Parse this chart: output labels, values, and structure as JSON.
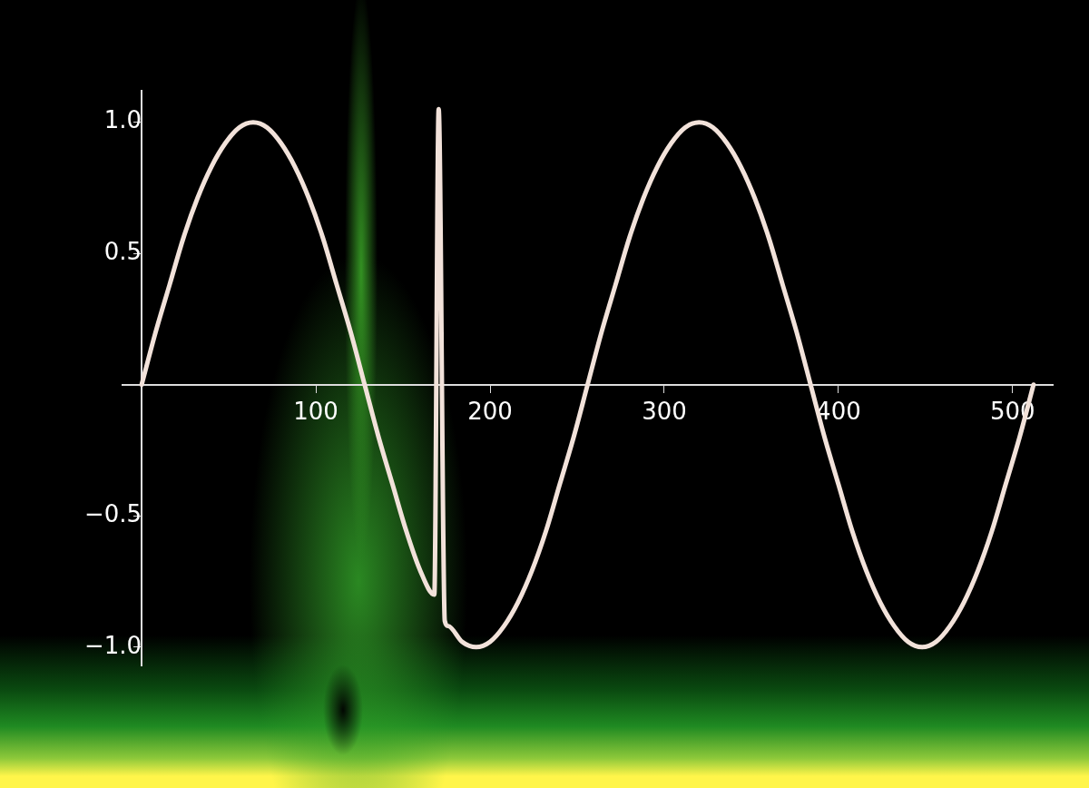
{
  "chart_data": {
    "type": "line",
    "x": [
      0,
      8,
      16,
      24,
      32,
      40,
      48,
      56,
      64,
      72,
      80,
      88,
      96,
      104,
      112,
      120,
      128,
      136,
      144,
      152,
      160,
      168,
      170.5,
      174,
      176,
      184,
      192,
      200,
      208,
      216,
      224,
      232,
      240,
      248,
      256,
      264,
      272,
      280,
      288,
      296,
      304,
      312,
      320,
      328,
      336,
      344,
      352,
      360,
      368,
      376,
      384,
      392,
      400,
      408,
      416,
      424,
      432,
      440,
      448,
      456,
      464,
      472,
      480,
      488,
      496,
      504,
      512
    ],
    "series": [
      {
        "color": "#f2e2da",
        "values": [
          0,
          0.2,
          0.38,
          0.56,
          0.71,
          0.83,
          0.92,
          0.98,
          1,
          0.98,
          0.92,
          0.83,
          0.71,
          0.56,
          0.38,
          0.2,
          0,
          -0.2,
          -0.38,
          -0.56,
          -0.71,
          -0.8,
          1.05,
          -0.9,
          -0.92,
          -0.98,
          -1,
          -0.98,
          -0.92,
          -0.83,
          -0.71,
          -0.56,
          -0.38,
          -0.2,
          0,
          0.2,
          0.38,
          0.56,
          0.71,
          0.83,
          0.92,
          0.98,
          1,
          0.98,
          0.92,
          0.83,
          0.71,
          0.56,
          0.38,
          0.2,
          0,
          -0.2,
          -0.38,
          -0.56,
          -0.71,
          -0.83,
          -0.92,
          -0.98,
          -1,
          -0.98,
          -0.92,
          -0.83,
          -0.71,
          -0.56,
          -0.38,
          -0.2,
          0
        ]
      }
    ],
    "xlim": [
      -11,
      523
    ],
    "xticks": [
      100,
      200,
      300,
      400,
      500
    ],
    "ylim": [
      -1.07,
      1.12
    ],
    "yticks": [
      {
        "value": -1,
        "label": "−1.0"
      },
      {
        "value": -0.5,
        "label": "−0.5"
      },
      {
        "value": 0.5,
        "label": "0.5"
      },
      {
        "value": 1,
        "label": "1.0"
      }
    ],
    "grid": false,
    "legend": false,
    "marker": "none",
    "line_style": "solid"
  }
}
